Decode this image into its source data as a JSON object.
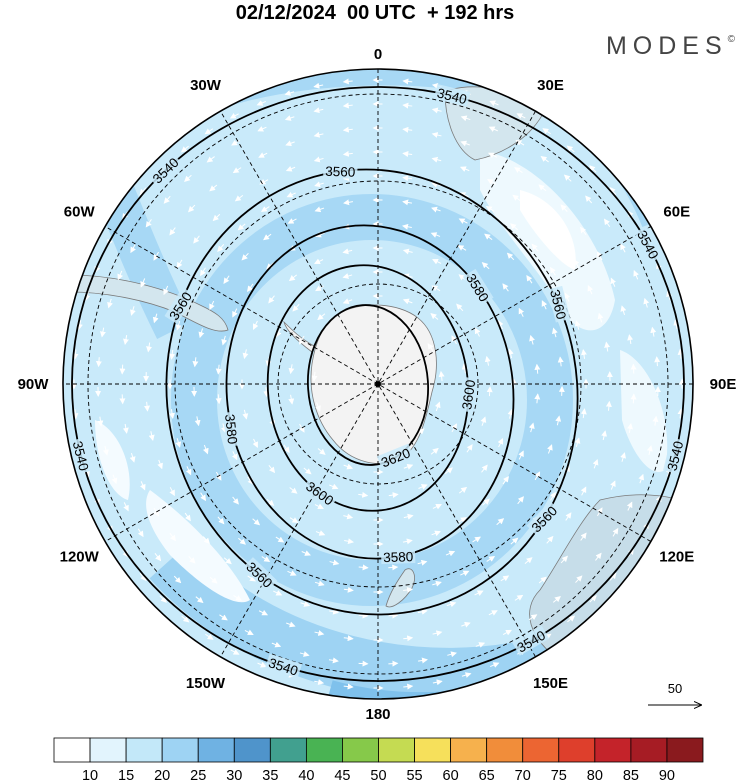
{
  "header": {
    "title": "02/12/2024  00 UTC  + 192 hrs",
    "brand": "MODES",
    "brand_mark": "©"
  },
  "map": {
    "projection": "south-polar-stereographic",
    "meridian_labels": [
      {
        "text": "0",
        "lon": 0
      },
      {
        "text": "30E",
        "lon": 30
      },
      {
        "text": "60E",
        "lon": 60
      },
      {
        "text": "90E",
        "lon": 90
      },
      {
        "text": "120E",
        "lon": 120
      },
      {
        "text": "150E",
        "lon": 150
      },
      {
        "text": "180",
        "lon": 180
      },
      {
        "text": "150W",
        "lon": -150
      },
      {
        "text": "120W",
        "lon": -120
      },
      {
        "text": "90W",
        "lon": -90
      },
      {
        "text": "60W",
        "lon": -60
      },
      {
        "text": "30W",
        "lon": -30
      }
    ],
    "contour_labels": [
      {
        "text": "3540",
        "lon": 14
      },
      {
        "text": "3540",
        "lon": -44
      },
      {
        "text": "3540",
        "lon": 62
      },
      {
        "text": "3540",
        "lon": 104
      },
      {
        "text": "3540",
        "lon": 150
      },
      {
        "text": "3540",
        "lon": -162
      },
      {
        "text": "3540",
        "lon": -104
      },
      {
        "text": "3560",
        "lon": 2
      },
      {
        "text": "3560",
        "lon": -58
      },
      {
        "text": "3560",
        "lon": 76
      },
      {
        "text": "3560",
        "lon": 134
      },
      {
        "text": "3560",
        "lon": -136
      },
      {
        "text": "3580",
        "lon": 58
      },
      {
        "text": "3580",
        "lon": 178
      },
      {
        "text": "3580",
        "lon": -96
      },
      {
        "text": "3600",
        "lon": 98
      },
      {
        "text": "3600",
        "lon": -144
      },
      {
        "text": "3620",
        "lon": 158
      }
    ],
    "wind_reference": {
      "value": "50"
    }
  },
  "colorbar": {
    "ticks": [
      "10",
      "15",
      "20",
      "25",
      "30",
      "35",
      "40",
      "45",
      "50",
      "55",
      "60",
      "65",
      "70",
      "75",
      "80",
      "85",
      "90"
    ],
    "colors": [
      "#ffffff",
      "#e2f4fd",
      "#c3e8f9",
      "#9ed3f3",
      "#6fb2e3",
      "#4f94cb",
      "#41a08f",
      "#49b353",
      "#86c94a",
      "#c5db52",
      "#f6e05b",
      "#f6b14d",
      "#f18d3a",
      "#ec6532",
      "#de3f2c",
      "#c4232a",
      "#a61c24",
      "#8a1a1e"
    ]
  }
}
